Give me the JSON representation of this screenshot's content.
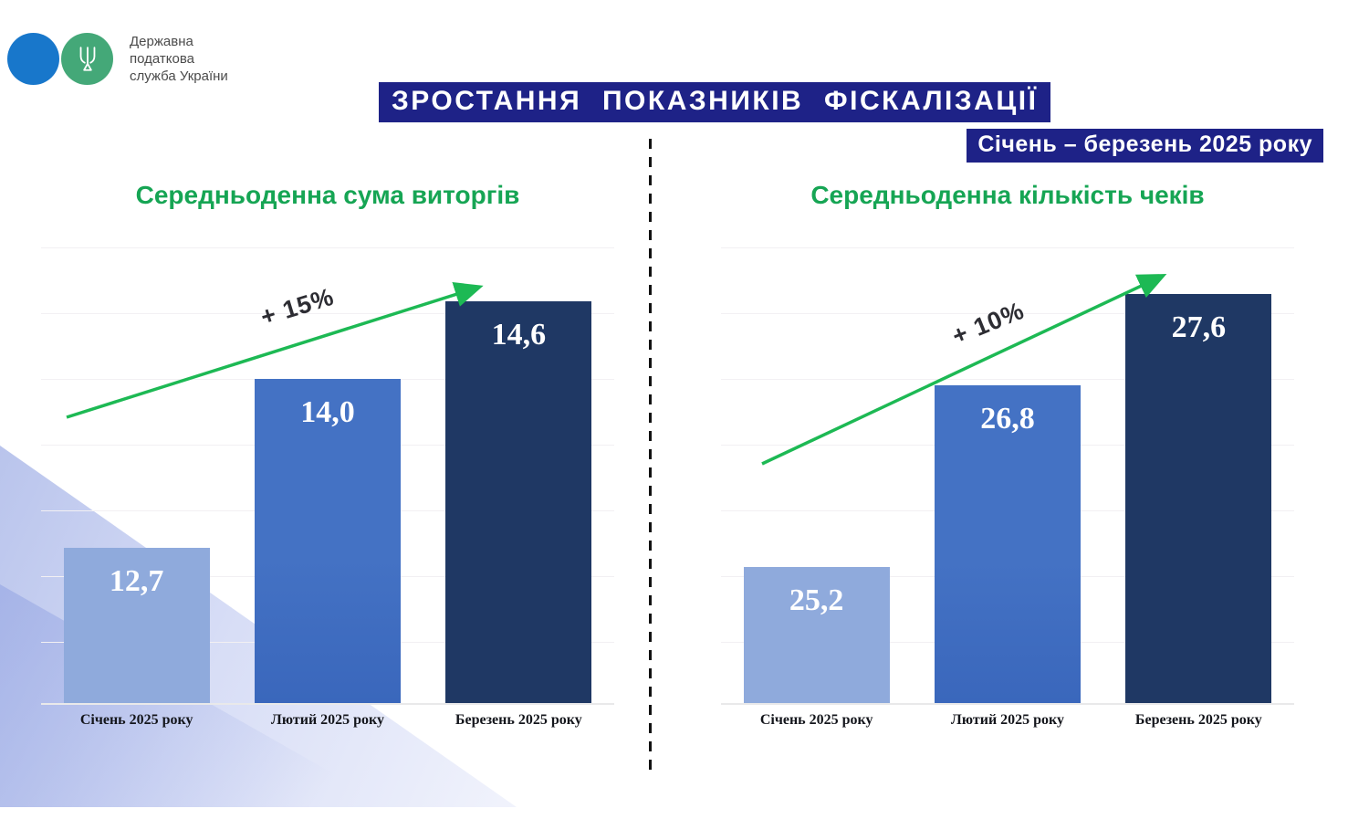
{
  "header": {
    "title": "ЗРОСТАННЯ ПОКАЗНИКІВ ФІСКАЛІЗАЦІЇ",
    "subtitle": "Січень – березень 2025 року"
  },
  "logo": {
    "lines": [
      "Державна",
      "податкова",
      "служба України"
    ],
    "blue_circle_color": "#1877cb",
    "green_circle_color": "#44a878",
    "trident_icon": "ukraine-trident"
  },
  "colors": {
    "header_bg": "#1e2287",
    "header_text": "#ffffff",
    "chart_title_green": "#16a554",
    "arrow_green": "#1db954",
    "growth_text": "#2d2d33",
    "category_text": "#14161c",
    "bar_light": "#8faadc",
    "bar_medium": "#4472c4",
    "bar_dark": "#1f3864"
  },
  "chart_data": [
    {
      "type": "bar",
      "title": "Середньоденна сума виторгів",
      "categories": [
        "Січень 2025 року",
        "Лютий 2025 року",
        "Березень 2025 року"
      ],
      "values": [
        12.7,
        14.0,
        14.6
      ],
      "value_labels": [
        "12,7",
        "14,0",
        "14,6"
      ],
      "growth_label": "+ 15%",
      "ylim": [
        11.5,
        15.06
      ],
      "grid": true,
      "legend": "none",
      "bar_colors": [
        "#8faadc",
        "#4472c4",
        "#1f3864"
      ]
    },
    {
      "type": "bar",
      "title": "Середньоденна кількість чеків",
      "categories": [
        "Січень 2025 року",
        "Лютий 2025 року",
        "Березень 2025 року"
      ],
      "values": [
        25.2,
        26.8,
        27.6
      ],
      "value_labels": [
        "25,2",
        "26,8",
        "27,6"
      ],
      "growth_label": "+ 10%",
      "ylim": [
        24.0,
        28.06
      ],
      "grid": true,
      "legend": "none",
      "bar_colors": [
        "#8faadc",
        "#4472c4",
        "#1f3864"
      ]
    }
  ]
}
